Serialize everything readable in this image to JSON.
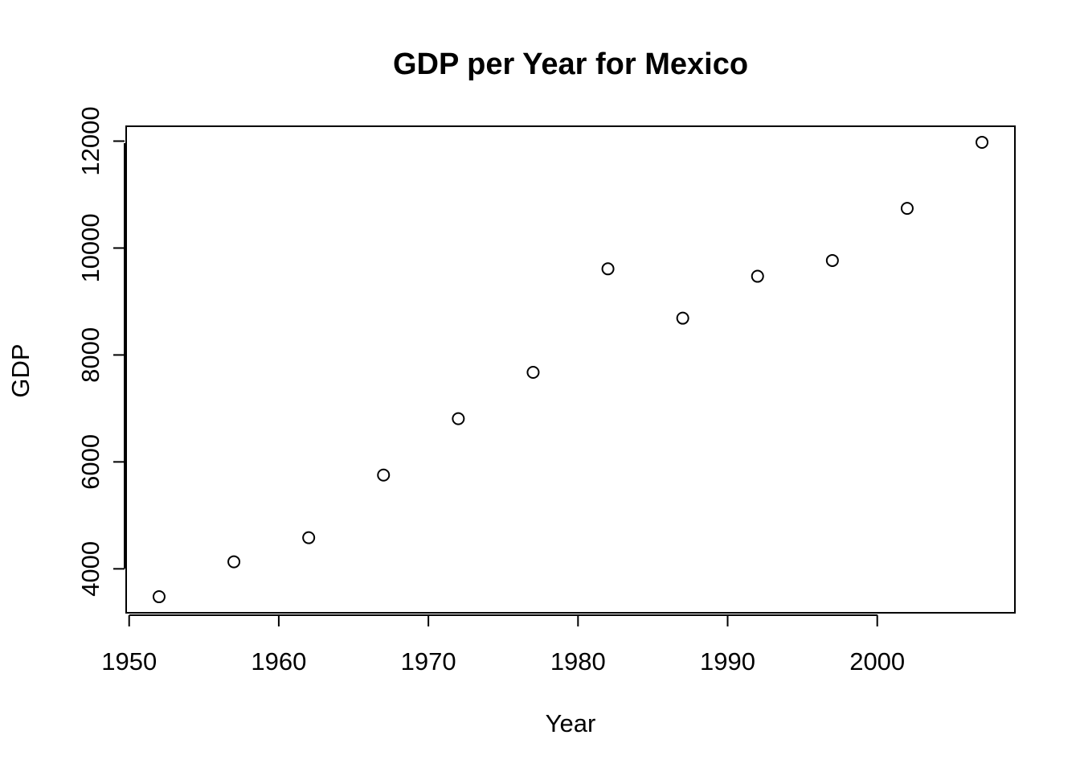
{
  "chart_data": {
    "type": "scatter",
    "title": "GDP per Year for Mexico",
    "xlabel": "Year",
    "ylabel": "GDP",
    "x": [
      1952,
      1957,
      1962,
      1967,
      1972,
      1977,
      1982,
      1987,
      1992,
      1997,
      2002,
      2007
    ],
    "y": [
      3478,
      4132,
      4582,
      5754,
      6809,
      7675,
      9611,
      8688,
      9472,
      9767,
      10742,
      11978
    ],
    "xlim": [
      1949.8,
      2009.2
    ],
    "ylim": [
      3178,
      12278
    ],
    "xticks": [
      1950,
      1960,
      1970,
      1980,
      1990,
      2000
    ],
    "yticks": [
      4000,
      6000,
      8000,
      10000,
      12000
    ],
    "xtick_labels": [
      "1950",
      "1960",
      "1970",
      "1980",
      "1990",
      "2000"
    ],
    "ytick_labels": [
      "4000",
      "6000",
      "8000",
      "10000",
      "12000"
    ],
    "grid": false,
    "marker": "open-circle",
    "colors": {
      "point": "#000000",
      "axis": "#000000",
      "background": "#ffffff"
    }
  }
}
